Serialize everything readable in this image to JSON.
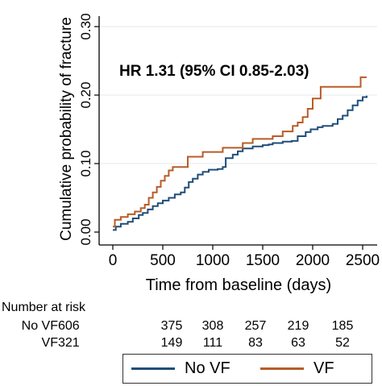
{
  "chart_data": {
    "type": "line",
    "annotation": "HR 1.31 (95% CI 0.85-2.03)",
    "xlabel": "Time from baseline (days)",
    "ylabel": "Cumulative probability of fracture",
    "xlim": [
      0,
      2600
    ],
    "ylim": [
      0,
      0.3
    ],
    "xticks": [
      "0",
      "500",
      "1000",
      "1500",
      "2000",
      "2500"
    ],
    "xtick_values": [
      0,
      500,
      1000,
      1500,
      2000,
      2500
    ],
    "yticks": [
      "0.00",
      "0.10",
      "0.20",
      "0.30"
    ],
    "ytick_values": [
      0,
      0.1,
      0.2,
      0.3
    ],
    "grid": "horizontal",
    "legend_position": "bottom",
    "series": [
      {
        "name": "No VF",
        "color": "#1f4e79",
        "x": [
          0,
          30,
          80,
          150,
          200,
          260,
          300,
          350,
          400,
          450,
          500,
          560,
          620,
          680,
          720,
          760,
          800,
          850,
          900,
          960,
          1050,
          1100,
          1130,
          1200,
          1250,
          1300,
          1400,
          1500,
          1560,
          1600,
          1700,
          1790,
          1850,
          1930,
          1980,
          2050,
          2100,
          2200,
          2250,
          2300,
          2350,
          2400,
          2450,
          2500,
          2540
        ],
        "y": [
          0.003,
          0.008,
          0.012,
          0.015,
          0.02,
          0.025,
          0.028,
          0.033,
          0.038,
          0.042,
          0.046,
          0.05,
          0.055,
          0.058,
          0.065,
          0.073,
          0.078,
          0.084,
          0.088,
          0.091,
          0.092,
          0.095,
          0.108,
          0.113,
          0.118,
          0.122,
          0.125,
          0.127,
          0.128,
          0.13,
          0.132,
          0.133,
          0.14,
          0.146,
          0.15,
          0.153,
          0.155,
          0.158,
          0.165,
          0.17,
          0.178,
          0.185,
          0.192,
          0.197,
          0.199
        ]
      },
      {
        "name": "VF",
        "color": "#b85c28",
        "x": [
          0,
          20,
          80,
          150,
          220,
          280,
          320,
          360,
          400,
          440,
          480,
          520,
          560,
          600,
          750,
          900,
          1100,
          1300,
          1400,
          1500,
          1600,
          1700,
          1800,
          1850,
          1900,
          1950,
          2000,
          2080,
          2300,
          2480,
          2540
        ],
        "y": [
          0.008,
          0.018,
          0.022,
          0.026,
          0.03,
          0.035,
          0.04,
          0.05,
          0.058,
          0.066,
          0.075,
          0.082,
          0.09,
          0.095,
          0.11,
          0.117,
          0.123,
          0.13,
          0.136,
          0.136,
          0.14,
          0.147,
          0.155,
          0.16,
          0.168,
          0.18,
          0.195,
          0.212,
          0.212,
          0.226,
          0.226
        ]
      }
    ]
  },
  "risk_table": {
    "title": "Number at risk",
    "rows": [
      {
        "label": "No VF",
        "values": [
          "606",
          "375",
          "308",
          "257",
          "219",
          "185"
        ]
      },
      {
        "label": "VF",
        "values": [
          "321",
          "149",
          "111",
          "83",
          "63",
          "52"
        ]
      }
    ]
  },
  "legend": [
    {
      "label": "No VF",
      "color": "#1f4e79"
    },
    {
      "label": "VF",
      "color": "#b85c28"
    }
  ]
}
